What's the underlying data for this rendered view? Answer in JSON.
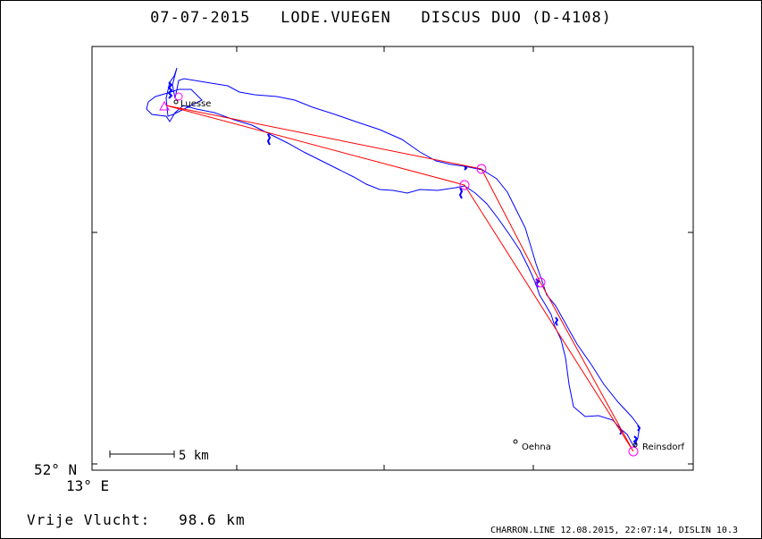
{
  "header": {
    "date": "07-07-2015",
    "flight_type": "LODE.VUEGEN",
    "aircraft": "DISCUS DUO (D-4108)"
  },
  "map": {
    "latitude_label": "52° N",
    "longitude_label": "13° E",
    "scale_label": "5 km",
    "places": [
      {
        "name": "Luesse",
        "marker": "small-circle-icon"
      },
      {
        "name": "Oehna",
        "marker": "small-circle-icon"
      },
      {
        "name": "Reinsdorf",
        "marker": "small-circle-icon"
      }
    ],
    "colors": {
      "track": "#0000ff",
      "task": "#ff0000",
      "turnpoints": "#ff00ff",
      "axes": "#000000"
    }
  },
  "summary": {
    "label": "Vrije Vlucht:",
    "distance": "98.6 km"
  },
  "footer": {
    "text": "CHARRON.LINE 12.08.2015, 22:07:14, DISLIN 10.3"
  }
}
